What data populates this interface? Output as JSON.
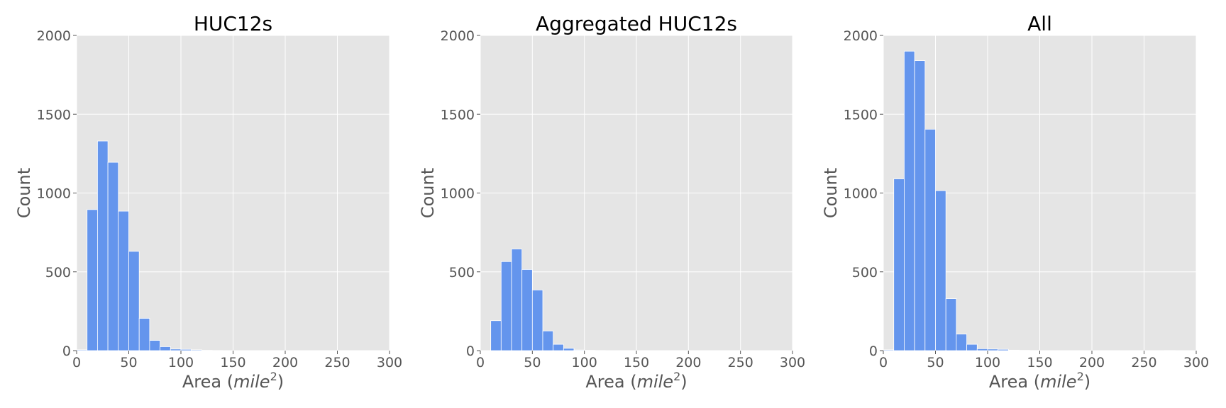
{
  "chart_data": [
    {
      "type": "bar",
      "title": "HUC12s",
      "xlabel": {
        "prefix": "Area (",
        "italic": "mile",
        "superscript": "2",
        "suffix": ")"
      },
      "ylabel": "Count",
      "xlim": [
        0,
        300
      ],
      "ylim": [
        0,
        2000
      ],
      "xticks": [
        0,
        50,
        100,
        150,
        200,
        250,
        300
      ],
      "yticks": [
        0,
        500,
        1000,
        1500,
        2000
      ],
      "grid": true,
      "bin_width": 10,
      "bins": [
        {
          "x0": 0,
          "x1": 10,
          "count": 5
        },
        {
          "x0": 10,
          "x1": 20,
          "count": 895
        },
        {
          "x0": 20,
          "x1": 30,
          "count": 1330
        },
        {
          "x0": 30,
          "x1": 40,
          "count": 1195
        },
        {
          "x0": 40,
          "x1": 50,
          "count": 885
        },
        {
          "x0": 50,
          "x1": 60,
          "count": 630
        },
        {
          "x0": 60,
          "x1": 70,
          "count": 205
        },
        {
          "x0": 70,
          "x1": 80,
          "count": 65
        },
        {
          "x0": 80,
          "x1": 90,
          "count": 25
        },
        {
          "x0": 90,
          "x1": 100,
          "count": 10
        },
        {
          "x0": 100,
          "x1": 110,
          "count": 8
        },
        {
          "x0": 110,
          "x1": 120,
          "count": 5
        },
        {
          "x0": 120,
          "x1": 130,
          "count": 2
        },
        {
          "x0": 130,
          "x1": 140,
          "count": 1
        }
      ]
    },
    {
      "type": "bar",
      "title": "Aggregated HUC12s",
      "xlabel": {
        "prefix": "Area (",
        "italic": "mile",
        "superscript": "2",
        "suffix": ")"
      },
      "ylabel": "Count",
      "xlim": [
        0,
        300
      ],
      "ylim": [
        0,
        2000
      ],
      "xticks": [
        0,
        50,
        100,
        150,
        200,
        250,
        300
      ],
      "yticks": [
        0,
        500,
        1000,
        1500,
        2000
      ],
      "grid": true,
      "bin_width": 10,
      "bins": [
        {
          "x0": 10,
          "x1": 20,
          "count": 190
        },
        {
          "x0": 20,
          "x1": 30,
          "count": 565
        },
        {
          "x0": 30,
          "x1": 40,
          "count": 645
        },
        {
          "x0": 40,
          "x1": 50,
          "count": 515
        },
        {
          "x0": 50,
          "x1": 60,
          "count": 385
        },
        {
          "x0": 60,
          "x1": 70,
          "count": 125
        },
        {
          "x0": 70,
          "x1": 80,
          "count": 40
        },
        {
          "x0": 80,
          "x1": 90,
          "count": 15
        },
        {
          "x0": 90,
          "x1": 100,
          "count": 4
        },
        {
          "x0": 100,
          "x1": 110,
          "count": 2
        },
        {
          "x0": 110,
          "x1": 120,
          "count": 1
        }
      ]
    },
    {
      "type": "bar",
      "title": "All",
      "xlabel": {
        "prefix": "Area (",
        "italic": "mile",
        "superscript": "2",
        "suffix": ")"
      },
      "ylabel": "Count",
      "xlim": [
        0,
        300
      ],
      "ylim": [
        0,
        2000
      ],
      "xticks": [
        0,
        50,
        100,
        150,
        200,
        250,
        300
      ],
      "yticks": [
        0,
        500,
        1000,
        1500,
        2000
      ],
      "grid": true,
      "bin_width": 10,
      "bins": [
        {
          "x0": 0,
          "x1": 10,
          "count": 5
        },
        {
          "x0": 10,
          "x1": 20,
          "count": 1090
        },
        {
          "x0": 20,
          "x1": 30,
          "count": 1900
        },
        {
          "x0": 30,
          "x1": 40,
          "count": 1840
        },
        {
          "x0": 40,
          "x1": 50,
          "count": 1405
        },
        {
          "x0": 50,
          "x1": 60,
          "count": 1015
        },
        {
          "x0": 60,
          "x1": 70,
          "count": 330
        },
        {
          "x0": 70,
          "x1": 80,
          "count": 105
        },
        {
          "x0": 80,
          "x1": 90,
          "count": 40
        },
        {
          "x0": 90,
          "x1": 100,
          "count": 12
        },
        {
          "x0": 100,
          "x1": 110,
          "count": 10
        },
        {
          "x0": 110,
          "x1": 120,
          "count": 8
        },
        {
          "x0": 120,
          "x1": 130,
          "count": 3
        },
        {
          "x0": 130,
          "x1": 140,
          "count": 2
        },
        {
          "x0": 140,
          "x1": 150,
          "count": 1
        },
        {
          "x0": 270,
          "x1": 280,
          "count": 1
        }
      ]
    }
  ],
  "colors": {
    "bar": "#6495ed",
    "plot_background": "#e5e5e5",
    "grid": "#ffffff",
    "text": "#555555",
    "title": "#000000"
  }
}
